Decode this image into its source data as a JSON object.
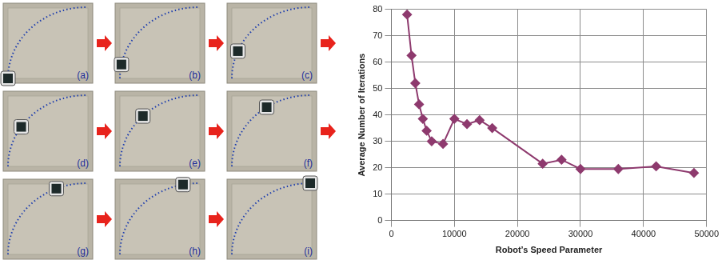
{
  "photo_panels": {
    "labels": [
      "(a)",
      "(b)",
      "(c)",
      "(d)",
      "(e)",
      "(f)",
      "(g)",
      "(h)",
      "(i)"
    ]
  },
  "chart_data": {
    "type": "line",
    "x_label": "Robot’s Speed Parameter",
    "y_label": "Average Number of Iterations",
    "x": [
      2500,
      3200,
      3800,
      4400,
      5000,
      5600,
      6400,
      8200,
      10000,
      12000,
      14000,
      16000,
      24000,
      27000,
      30000,
      36000,
      42000,
      48000
    ],
    "values": [
      78,
      62.5,
      52,
      44,
      38.5,
      34,
      30,
      29,
      38.5,
      36.5,
      38,
      35,
      21.5,
      23,
      19.5,
      19.5,
      20.5,
      18
    ],
    "color": "#8e3a6e",
    "marker": "diamond",
    "line_style": "solid",
    "xlim": [
      0,
      50000
    ],
    "xticks": [
      0,
      10000,
      20000,
      30000,
      40000,
      50000
    ],
    "ylim": [
      0,
      80
    ],
    "yticks": [
      0,
      10,
      20,
      30,
      40,
      50,
      60,
      70,
      80
    ],
    "grid": true
  }
}
